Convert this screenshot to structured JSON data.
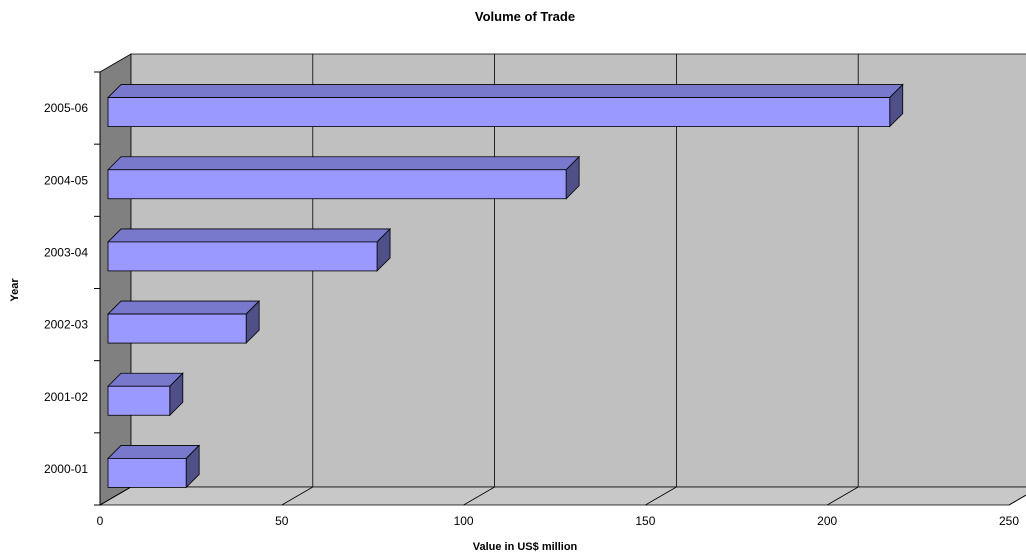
{
  "chart_data": {
    "type": "bar",
    "orientation": "horizontal",
    "title": "Volume of Trade",
    "xlabel": "Value in US$ million",
    "ylabel": "Year",
    "categories": [
      "2000-01",
      "2001-02",
      "2002-03",
      "2003-04",
      "2004-05",
      "2005-06"
    ],
    "values": [
      21.5,
      17,
      38,
      74,
      126,
      215
    ],
    "xlim": [
      0,
      250
    ],
    "xticks": [
      "0",
      "50",
      "100",
      "150",
      "200",
      "250"
    ],
    "grid": true,
    "legend": "none",
    "colors": {
      "bar_front": "#9999ff",
      "bar_top": "#7878cc",
      "bar_side": "#505089",
      "back_wall": "#c0c0c0",
      "side_wall": "#808080",
      "floor": "#c8c8c8"
    }
  }
}
